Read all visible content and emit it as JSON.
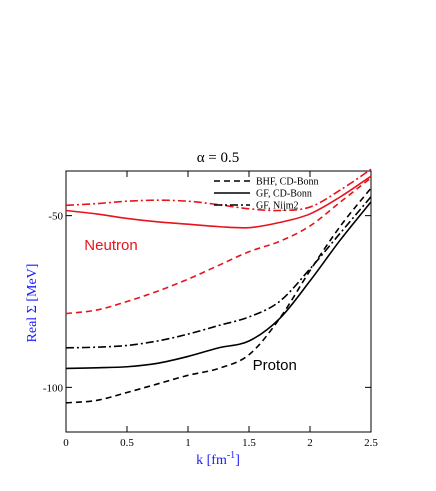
{
  "chart_data": {
    "type": "line",
    "title": "α = 0.5",
    "xlabel": "k [fm",
    "xlabel_sup": "-1",
    "xlabel_end": "]",
    "ylabel": "Real Σ [MeV]",
    "xlim": [
      0,
      2.5
    ],
    "ylim": [
      -113,
      -37
    ],
    "xticks": [
      0,
      0.5,
      1,
      1.5,
      2,
      2.5
    ],
    "xtick_labels": [
      "0",
      "0.5",
      "1",
      "1.5",
      "2",
      "2.5"
    ],
    "yticks": [
      -50,
      -100
    ],
    "ytick_labels": [
      "-50",
      "-100"
    ],
    "grid": false,
    "legend_position": "top-right",
    "legend": [
      {
        "label": "BHF, CD-Bonn",
        "dash": "dashed"
      },
      {
        "label": "GF, CD-Bonn",
        "dash": "solid"
      },
      {
        "label": "GF, Nijm2",
        "dash": "dashdot"
      }
    ],
    "annotations": [
      {
        "text": "Neutron",
        "color": "#e8141d",
        "x": 0.15,
        "y": -60
      },
      {
        "text": "Proton",
        "color": "#000000",
        "x": 1.53,
        "y": -95
      }
    ],
    "series": [
      {
        "group": "neutron",
        "method": "BHF, CD-Bonn",
        "color": "#e8141d",
        "dash": "dashed",
        "x": [
          0,
          0.25,
          0.5,
          0.75,
          1.0,
          1.25,
          1.5,
          1.75,
          2.0,
          2.25,
          2.5
        ],
        "y": [
          -78.5,
          -77.5,
          -75.0,
          -72.0,
          -68.5,
          -64.5,
          -60.5,
          -57.5,
          -53.0,
          -46.0,
          -39.0
        ]
      },
      {
        "group": "neutron",
        "method": "GF, CD-Bonn",
        "color": "#e8141d",
        "dash": "solid",
        "x": [
          0,
          0.25,
          0.5,
          0.75,
          1.0,
          1.25,
          1.5,
          1.75,
          2.0,
          2.25,
          2.5
        ],
        "y": [
          -48.5,
          -49.5,
          -50.8,
          -51.8,
          -52.5,
          -53.2,
          -53.5,
          -52.0,
          -49.5,
          -44.5,
          -38.5
        ]
      },
      {
        "group": "neutron",
        "method": "GF, Nijm2",
        "color": "#e8141d",
        "dash": "dashdot",
        "x": [
          0,
          0.25,
          0.5,
          0.75,
          1.0,
          1.25,
          1.5,
          1.75,
          2.0,
          2.25,
          2.5
        ],
        "y": [
          -47.0,
          -46.5,
          -45.8,
          -45.5,
          -45.8,
          -46.8,
          -48.0,
          -48.5,
          -47.5,
          -42.5,
          -36.5
        ]
      },
      {
        "group": "proton",
        "method": "BHF, CD-Bonn",
        "color": "#000000",
        "dash": "dashed",
        "x": [
          0,
          0.25,
          0.5,
          0.75,
          1.0,
          1.25,
          1.5,
          1.75,
          2.0,
          2.25,
          2.5
        ],
        "y": [
          -104.5,
          -103.8,
          -101.5,
          -99.0,
          -96.5,
          -94.5,
          -90.5,
          -80.0,
          -66.0,
          -53.0,
          -42.0
        ]
      },
      {
        "group": "proton",
        "method": "GF, CD-Bonn",
        "color": "#000000",
        "dash": "solid",
        "x": [
          0,
          0.25,
          0.5,
          0.75,
          1.0,
          1.25,
          1.5,
          1.75,
          2.0,
          2.25,
          2.5
        ],
        "y": [
          -94.5,
          -94.3,
          -94.0,
          -93.0,
          -91.0,
          -88.5,
          -86.5,
          -80.0,
          -69.0,
          -57.0,
          -46.0
        ]
      },
      {
        "group": "proton",
        "method": "GF, Nijm2",
        "color": "#000000",
        "dash": "dashdot",
        "x": [
          0,
          0.25,
          0.5,
          0.75,
          1.0,
          1.25,
          1.5,
          1.75,
          2.0,
          2.25,
          2.5
        ],
        "y": [
          -88.5,
          -88.3,
          -87.8,
          -86.5,
          -84.5,
          -82.0,
          -79.5,
          -75.0,
          -65.5,
          -55.0,
          -44.5
        ]
      }
    ]
  }
}
